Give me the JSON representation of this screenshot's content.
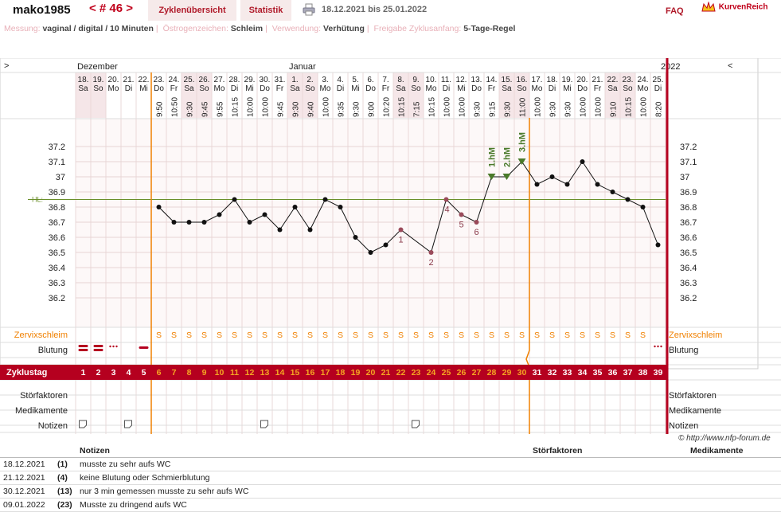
{
  "header": {
    "username": "mako1985",
    "tab_cycles": "Zyklenübersicht",
    "tab_stats": "Statistik",
    "cycle_nav": "< # 46 >",
    "date_range": "18.12.2021 bis 25.01.2022",
    "faq": "FAQ",
    "brand": "KurvenReich"
  },
  "info": {
    "messung_label": "Messung:",
    "messung_value": "vaginal / digital / 10 Minuten",
    "oestro_label": "Östrogenzeichen:",
    "oestro_value": "Schleim",
    "verwendung_label": "Verwendung:",
    "verwendung_value": "Verhütung",
    "freigabe_label": "Freigabe Zyklusanfang:",
    "freigabe_value": "5-Tage-Regel"
  },
  "chart_data": {
    "type": "line",
    "month_labels": [
      {
        "text": "Dezember",
        "day": 0
      },
      {
        "text": "Januar",
        "day": 14
      },
      {
        "text": "2022",
        "day": 39
      }
    ],
    "nav_left": ">",
    "nav_right": "<",
    "dates": [
      "18.",
      "19.",
      "20.",
      "21.",
      "22.",
      "23.",
      "24.",
      "25.",
      "26.",
      "27.",
      "28.",
      "29.",
      "30.",
      "31.",
      "1.",
      "2.",
      "3.",
      "4.",
      "5.",
      "6.",
      "7.",
      "8.",
      "9.",
      "10.",
      "11.",
      "12.",
      "13.",
      "14.",
      "15.",
      "16.",
      "17.",
      "18.",
      "19.",
      "20.",
      "21.",
      "22.",
      "23.",
      "24.",
      "25."
    ],
    "weekdays": [
      "Sa",
      "So",
      "Mo",
      "Di",
      "Mi",
      "Do",
      "Fr",
      "Sa",
      "So",
      "Mo",
      "Di",
      "Mi",
      "Do",
      "Fr",
      "Sa",
      "So",
      "Mo",
      "Di",
      "Mi",
      "Do",
      "Fr",
      "Sa",
      "So",
      "Mo",
      "Di",
      "Mi",
      "Do",
      "Fr",
      "Sa",
      "So",
      "Mo",
      "Di",
      "Mi",
      "Do",
      "Fr",
      "Sa",
      "So",
      "Mo",
      "Di"
    ],
    "times": [
      "",
      "",
      "",
      "",
      "",
      "9:50",
      "10:50",
      "9:30",
      "9:45",
      "9:55",
      "10:15",
      "10:00",
      "10:00",
      "9:45",
      "9:30",
      "9:40",
      "10:00",
      "9:35",
      "9:30",
      "9:00",
      "10:20",
      "10:15",
      "7:15",
      "10:15",
      "10:00",
      "10:00",
      "9:30",
      "9:15",
      "9:30",
      "11:00",
      "10:00",
      "9:30",
      "9:30",
      "10:00",
      "10:00",
      "9:10",
      "10:15",
      "10:00",
      "8:20"
    ],
    "temperatures": [
      null,
      null,
      null,
      null,
      null,
      36.8,
      36.7,
      36.7,
      36.7,
      36.75,
      36.85,
      36.7,
      36.75,
      36.65,
      36.8,
      36.65,
      36.85,
      36.8,
      36.6,
      36.5,
      36.55,
      36.65,
      null,
      36.5,
      36.85,
      36.75,
      36.7,
      37.0,
      37.0,
      37.1,
      36.95,
      37.0,
      36.95,
      37.1,
      36.95,
      36.9,
      36.85,
      36.8,
      36.55
    ],
    "excluded_points": [
      21,
      23
    ],
    "point_labels": [
      {
        "day": 21,
        "text": "1"
      },
      {
        "day": 23,
        "text": "2"
      },
      {
        "day": 24,
        "text": "4"
      },
      {
        "day": 25,
        "text": "5"
      },
      {
        "day": 26,
        "text": "6"
      }
    ],
    "hm_labels": [
      {
        "day": 27,
        "text": "1.hM"
      },
      {
        "day": 28,
        "text": "2.hM"
      },
      {
        "day": 29,
        "text": "3.hM"
      }
    ],
    "y_ticks": [
      "37.2",
      "37.1",
      "37",
      "36.9",
      "36.8",
      "36.7",
      "36.6",
      "36.5",
      "36.4",
      "36.3",
      "36.2"
    ],
    "ylim": [
      36.1,
      37.3
    ],
    "hl_label": "HL:",
    "hl_value": 36.85,
    "row_labels": {
      "zervix": "Zervixschleim",
      "blutung": "Blutung",
      "zyklustag": "Zyklustag",
      "stoer": "Störfaktoren",
      "medi": "Medikamente",
      "notizen": "Notizen"
    },
    "zervix": [
      "",
      "",
      "",
      "",
      "",
      "S",
      "S",
      "S",
      "S",
      "S",
      "S",
      "S",
      "S",
      "S",
      "S",
      "S",
      "S",
      "S",
      "S",
      "S",
      "S",
      "S",
      "S",
      "S",
      "S",
      "S",
      "S",
      "S",
      "S",
      "S",
      "S",
      "S",
      "S",
      "S",
      "S",
      "S",
      "S",
      "S",
      ""
    ],
    "zervix_symbol": "S",
    "blutung": [
      "heavy",
      "heavy",
      "light",
      "",
      "medium",
      "",
      "",
      "",
      "",
      "",
      "",
      "",
      "",
      "",
      "",
      "",
      "",
      "",
      "",
      "",
      "",
      "",
      "",
      "",
      "",
      "",
      "",
      "",
      "",
      "",
      "",
      "",
      "",
      "",
      "",
      "",
      "",
      "",
      "light"
    ],
    "zyklustag": [
      "1",
      "2",
      "3",
      "4",
      "5",
      "6",
      "7",
      "8",
      "9",
      "10",
      "11",
      "12",
      "13",
      "14",
      "15",
      "16",
      "17",
      "18",
      "19",
      "20",
      "21",
      "22",
      "23",
      "24",
      "25",
      "26",
      "27",
      "28",
      "29",
      "30",
      "31",
      "32",
      "33",
      "34",
      "35",
      "36",
      "37",
      "38",
      "39"
    ],
    "notes_days": [
      0,
      3,
      12,
      22
    ],
    "colors": {
      "accent": "#b5001f",
      "orange": "#f08000",
      "hl": "#6a8f2a",
      "hm": "#4a7a2a",
      "weekend": "#f5e6e8"
    }
  },
  "credit": "© http://www.nfp-forum.de",
  "notes": {
    "headers": {
      "notizen": "Notizen",
      "stoer": "Störfaktoren",
      "medi": "Medikamente"
    },
    "rows": [
      {
        "date": "18.12.2021",
        "day": "(1)",
        "text": "musste zu sehr aufs WC"
      },
      {
        "date": "21.12.2021",
        "day": "(4)",
        "text": "keine Blutung oder Schmierblutung"
      },
      {
        "date": "30.12.2021",
        "day": "(13)",
        "text": "nur 3 min gemessen musste zu sehr aufs WC"
      },
      {
        "date": "09.01.2022",
        "day": "(23)",
        "text": "Musste zu dringend aufs WC"
      }
    ]
  }
}
